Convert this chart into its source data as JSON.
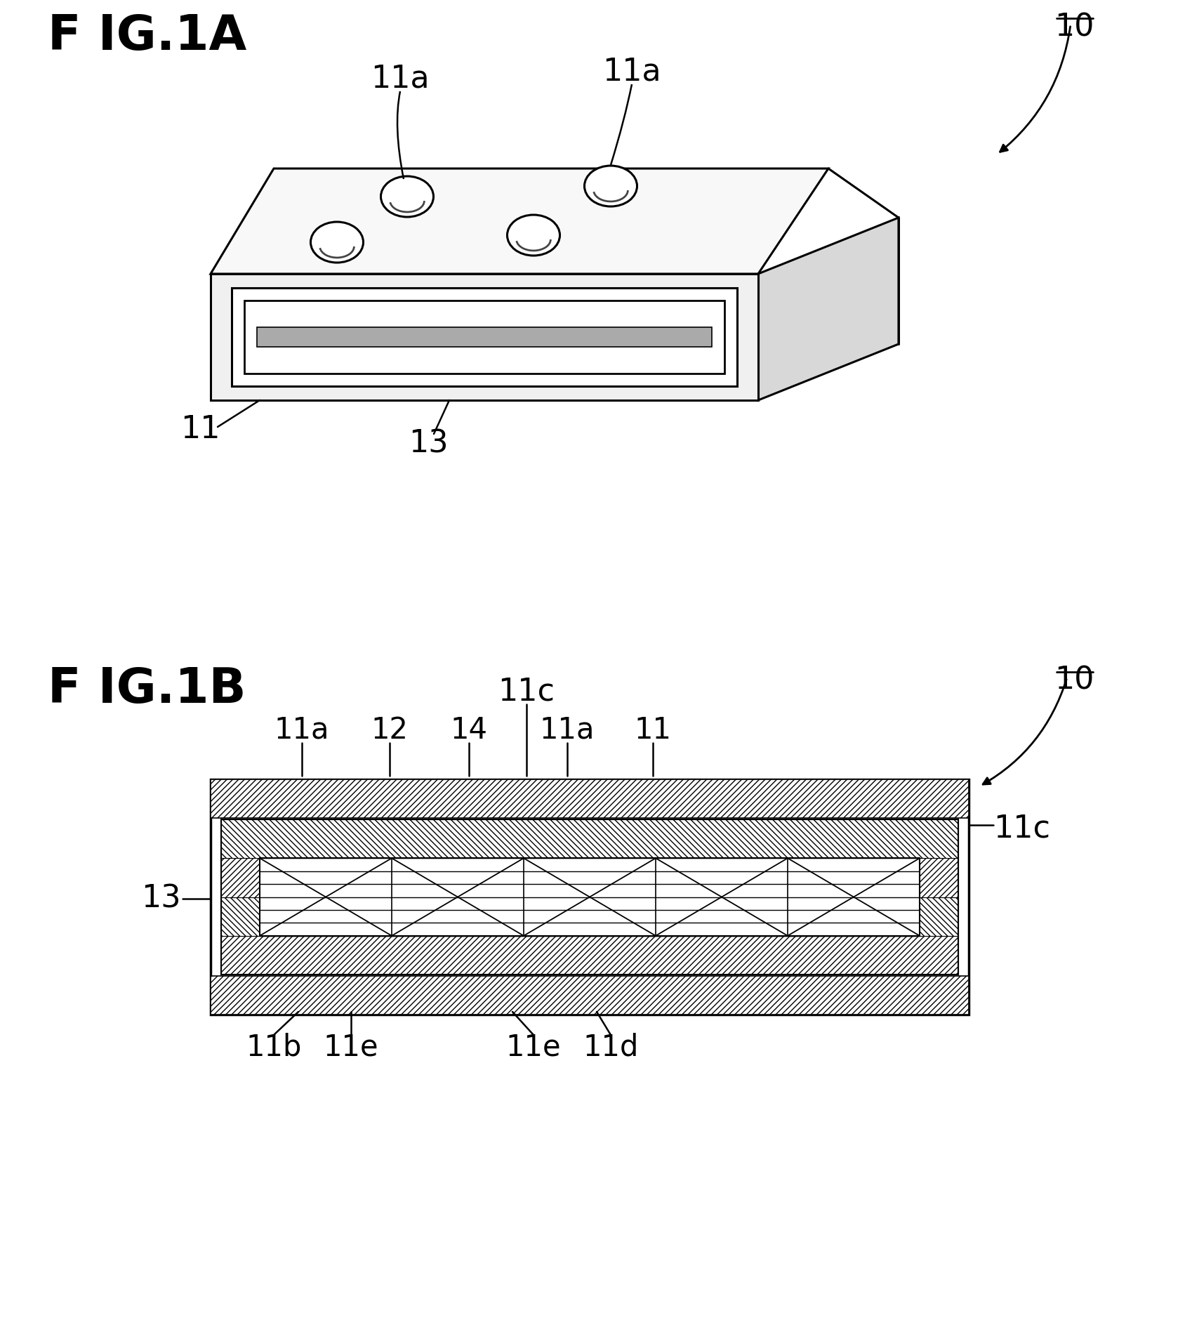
{
  "bg_color": "#ffffff",
  "lc": "#000000",
  "fig_width": 16.99,
  "fig_height": 18.8,
  "dpi": 100,
  "fig1a_title": "F IG.1A",
  "fig1b_title": "F IG.1B",
  "label_10": "10",
  "label_11": "11",
  "label_11a": "11a",
  "label_11b": "11b",
  "label_11c": "11c",
  "label_11d": "11d",
  "label_11e": "11e",
  "label_12": "12",
  "label_13": "13",
  "label_14": "14",
  "title_fontsize": 50,
  "label_fontsize": 32,
  "lw": 2.2
}
